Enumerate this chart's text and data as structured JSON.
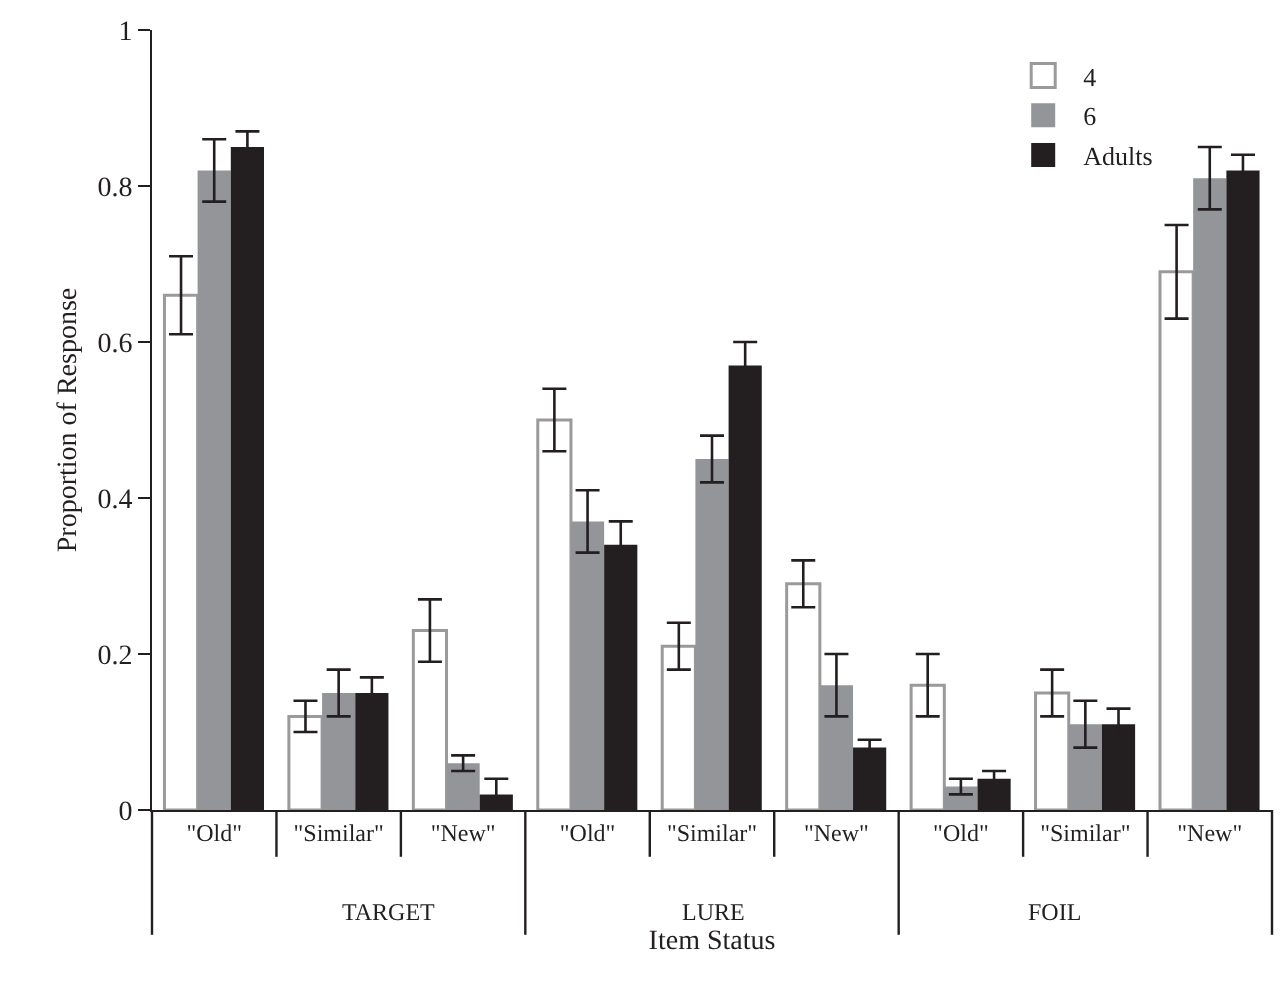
{
  "chart_data": {
    "type": "bar",
    "xlabel": "Item Status",
    "ylabel": "Proportion of Response",
    "categories": [
      "\"Old\"",
      "\"Similar\"",
      "\"New\"",
      "\"Old\"",
      "\"Similar\"",
      "\"New\"",
      "\"Old\"",
      "\"Similar\"",
      "\"New\""
    ],
    "annotations": [
      "TARGET",
      "LURE",
      "FOIL"
    ],
    "series": [
      {
        "name": "4",
        "color": "#ffffff",
        "values": [
          0.66,
          0.12,
          0.23,
          0.5,
          0.21,
          0.29,
          0.16,
          0.15,
          0.69
        ],
        "errors": [
          0.05,
          0.02,
          0.04,
          0.04,
          0.03,
          0.03,
          0.04,
          0.03,
          0.06
        ]
      },
      {
        "name": "6",
        "color": "#939598",
        "values": [
          0.82,
          0.15,
          0.06,
          0.37,
          0.45,
          0.16,
          0.03,
          0.11,
          0.81
        ],
        "errors": [
          0.04,
          0.03,
          0.01,
          0.04,
          0.03,
          0.04,
          0.01,
          0.03,
          0.04
        ]
      },
      {
        "name": "Adults",
        "color": "#231f20",
        "values": [
          0.85,
          0.15,
          0.02,
          0.34,
          0.57,
          0.08,
          0.04,
          0.11,
          0.82
        ],
        "errors": [
          0.02,
          0.02,
          0.02,
          0.03,
          0.03,
          0.01,
          0.01,
          0.02,
          0.02
        ]
      }
    ],
    "ylim": [
      0,
      1
    ],
    "yticks": [
      0,
      0.2,
      0.4,
      0.6,
      0.8,
      1
    ],
    "grid": false,
    "legend": "top right"
  }
}
